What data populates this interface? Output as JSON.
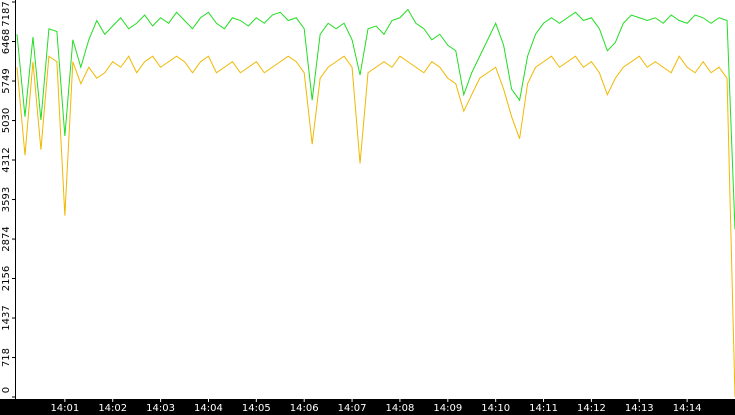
{
  "chart_data": {
    "type": "line",
    "x": [
      0,
      10,
      20,
      30,
      40,
      50,
      60,
      70,
      80,
      90,
      100,
      110,
      120,
      130,
      140,
      150,
      160,
      170,
      180,
      190,
      200,
      210,
      220,
      230,
      240,
      250,
      260,
      270,
      280,
      290,
      300,
      310,
      320,
      330,
      340,
      350,
      360,
      370,
      380,
      390,
      400,
      410,
      420,
      430,
      440,
      450,
      460,
      470,
      480,
      490,
      500,
      510,
      520,
      530,
      540,
      550,
      560,
      570,
      580,
      590,
      600,
      610,
      620,
      630,
      640,
      650,
      660,
      670,
      680,
      690,
      700,
      710,
      720,
      730,
      740,
      750,
      760,
      770,
      780,
      790,
      800,
      810,
      820,
      830,
      840,
      850,
      860,
      870,
      880,
      890,
      900
    ],
    "xlim": [
      0,
      900
    ],
    "xticks": [
      {
        "value": 60,
        "label": "14:01"
      },
      {
        "value": 120,
        "label": "14:02"
      },
      {
        "value": 180,
        "label": "14:03"
      },
      {
        "value": 240,
        "label": "14:04"
      },
      {
        "value": 300,
        "label": "14:05"
      },
      {
        "value": 360,
        "label": "14:06"
      },
      {
        "value": 420,
        "label": "14:07"
      },
      {
        "value": 480,
        "label": "14:08"
      },
      {
        "value": 540,
        "label": "14:09"
      },
      {
        "value": 600,
        "label": "14:10"
      },
      {
        "value": 660,
        "label": "14:11"
      },
      {
        "value": 720,
        "label": "14:12"
      },
      {
        "value": 780,
        "label": "14:13"
      },
      {
        "value": 840,
        "label": "14:14"
      }
    ],
    "ylim": [
      0,
      7187
    ],
    "yticks": [
      0,
      718,
      1437,
      2156,
      2874,
      3593,
      4312,
      5030,
      5749,
      6468,
      7187
    ],
    "series": [
      {
        "color": "#22dd22",
        "values": [
          6600,
          5100,
          6550,
          5040,
          6700,
          6650,
          4750,
          6500,
          6000,
          6500,
          6850,
          6600,
          6750,
          6900,
          6700,
          6800,
          6950,
          6750,
          6900,
          6800,
          7000,
          6850,
          6700,
          6900,
          7000,
          6800,
          6700,
          6900,
          6850,
          6750,
          6900,
          6800,
          6950,
          7000,
          6850,
          6900,
          6700,
          5400,
          6600,
          6800,
          6700,
          6800,
          6500,
          5860,
          6700,
          6750,
          6600,
          6850,
          6900,
          7050,
          6800,
          6700,
          6500,
          6600,
          6400,
          6300,
          5500,
          5900,
          6200,
          6500,
          6800,
          6400,
          5600,
          5400,
          6200,
          6600,
          6800,
          6900,
          6800,
          6900,
          7000,
          6850,
          6900,
          6700,
          6300,
          6450,
          6800,
          6950,
          6900,
          6850,
          6900,
          6800,
          6950,
          6850,
          6800,
          6950,
          6900,
          6800,
          6900,
          6850,
          3050
        ]
      },
      {
        "color": "#f0b800",
        "values": [
          6000,
          4400,
          6100,
          4500,
          6200,
          6100,
          3300,
          6100,
          5700,
          6000,
          5800,
          5900,
          6100,
          6000,
          6200,
          5900,
          6100,
          6200,
          6000,
          6100,
          6200,
          6100,
          5900,
          6100,
          6200,
          5900,
          6000,
          6100,
          5900,
          6000,
          6100,
          5900,
          6000,
          6100,
          6200,
          6100,
          5900,
          4600,
          5800,
          6000,
          6100,
          6200,
          6000,
          4250,
          5900,
          6000,
          6100,
          6000,
          6200,
          6100,
          6000,
          5900,
          6100,
          6000,
          5800,
          5700,
          5200,
          5500,
          5800,
          5900,
          6000,
          5600,
          5100,
          4700,
          5700,
          6000,
          6100,
          6200,
          6000,
          6100,
          6200,
          6000,
          6100,
          5900,
          5500,
          5800,
          6000,
          6100,
          6200,
          6000,
          6100,
          6000,
          5900,
          6200,
          6000,
          5900,
          6100,
          5900,
          6000,
          5800,
          0
        ]
      }
    ]
  }
}
